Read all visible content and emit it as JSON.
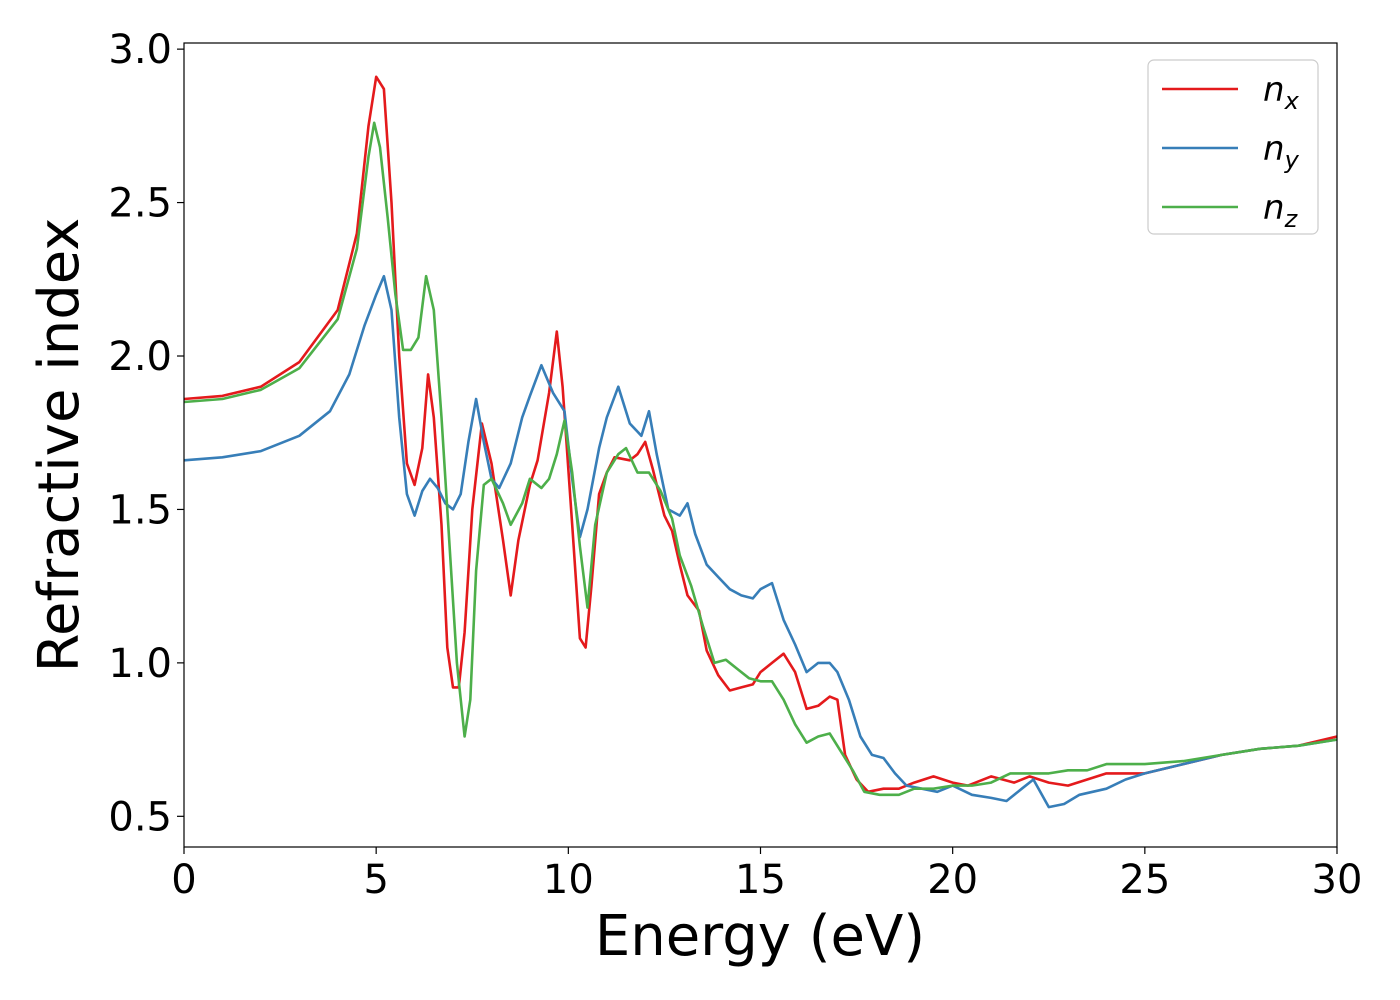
{
  "chart_data": {
    "type": "line",
    "title": "",
    "xlabel": "Energy (eV)",
    "ylabel": "Refractive index",
    "xlim": [
      0,
      30
    ],
    "ylim": [
      0.4,
      3.02
    ],
    "xticks": [
      0,
      5,
      10,
      15,
      20,
      25,
      30
    ],
    "xtick_labels": [
      "0",
      "5",
      "10",
      "15",
      "20",
      "25",
      "30"
    ],
    "yticks": [
      0.5,
      1.0,
      1.5,
      2.0,
      2.5,
      3.0
    ],
    "ytick_labels": [
      "0.5",
      "1.0",
      "1.5",
      "2.0",
      "2.5",
      "3.0"
    ],
    "grid": false,
    "legend": {
      "position": "top-right",
      "entries": [
        {
          "main": "n",
          "sub": "x"
        },
        {
          "main": "n",
          "sub": "y"
        },
        {
          "main": "n",
          "sub": "z"
        }
      ]
    },
    "series": [
      {
        "key": "nx",
        "color": "#e41a1c",
        "points": [
          [
            0,
            1.86
          ],
          [
            1,
            1.87
          ],
          [
            2,
            1.9
          ],
          [
            3,
            1.98
          ],
          [
            4,
            2.15
          ],
          [
            4.5,
            2.4
          ],
          [
            4.8,
            2.75
          ],
          [
            5.0,
            2.91
          ],
          [
            5.2,
            2.87
          ],
          [
            5.4,
            2.5
          ],
          [
            5.6,
            2.0
          ],
          [
            5.8,
            1.65
          ],
          [
            6.0,
            1.58
          ],
          [
            6.2,
            1.7
          ],
          [
            6.35,
            1.94
          ],
          [
            6.5,
            1.8
          ],
          [
            6.7,
            1.45
          ],
          [
            6.85,
            1.05
          ],
          [
            7.0,
            0.92
          ],
          [
            7.15,
            0.92
          ],
          [
            7.3,
            1.1
          ],
          [
            7.5,
            1.5
          ],
          [
            7.75,
            1.78
          ],
          [
            8.0,
            1.65
          ],
          [
            8.3,
            1.4
          ],
          [
            8.5,
            1.22
          ],
          [
            8.7,
            1.4
          ],
          [
            9.0,
            1.58
          ],
          [
            9.2,
            1.66
          ],
          [
            9.5,
            1.88
          ],
          [
            9.7,
            2.08
          ],
          [
            9.85,
            1.9
          ],
          [
            10.1,
            1.45
          ],
          [
            10.3,
            1.08
          ],
          [
            10.45,
            1.05
          ],
          [
            10.6,
            1.25
          ],
          [
            10.8,
            1.55
          ],
          [
            11.0,
            1.62
          ],
          [
            11.2,
            1.67
          ],
          [
            11.6,
            1.66
          ],
          [
            11.8,
            1.68
          ],
          [
            12.0,
            1.72
          ],
          [
            12.2,
            1.63
          ],
          [
            12.5,
            1.48
          ],
          [
            12.7,
            1.43
          ],
          [
            12.9,
            1.32
          ],
          [
            13.1,
            1.22
          ],
          [
            13.4,
            1.17
          ],
          [
            13.6,
            1.04
          ],
          [
            13.9,
            0.96
          ],
          [
            14.2,
            0.91
          ],
          [
            14.5,
            0.92
          ],
          [
            14.8,
            0.93
          ],
          [
            15.0,
            0.97
          ],
          [
            15.3,
            1.0
          ],
          [
            15.6,
            1.03
          ],
          [
            15.9,
            0.97
          ],
          [
            16.2,
            0.85
          ],
          [
            16.5,
            0.86
          ],
          [
            16.8,
            0.89
          ],
          [
            17.0,
            0.88
          ],
          [
            17.2,
            0.7
          ],
          [
            17.5,
            0.62
          ],
          [
            17.8,
            0.58
          ],
          [
            18.2,
            0.59
          ],
          [
            18.6,
            0.59
          ],
          [
            19.0,
            0.61
          ],
          [
            19.5,
            0.63
          ],
          [
            20.0,
            0.61
          ],
          [
            20.4,
            0.6
          ],
          [
            21.0,
            0.63
          ],
          [
            21.6,
            0.61
          ],
          [
            22.0,
            0.63
          ],
          [
            22.5,
            0.61
          ],
          [
            23.0,
            0.6
          ],
          [
            23.5,
            0.62
          ],
          [
            24.0,
            0.64
          ],
          [
            25.0,
            0.64
          ],
          [
            26.0,
            0.67
          ],
          [
            27.0,
            0.7
          ],
          [
            28.0,
            0.72
          ],
          [
            29.0,
            0.73
          ],
          [
            30.0,
            0.76
          ]
        ]
      },
      {
        "key": "ny",
        "color": "#377eb8",
        "points": [
          [
            0,
            1.66
          ],
          [
            1,
            1.67
          ],
          [
            2,
            1.69
          ],
          [
            3,
            1.74
          ],
          [
            3.8,
            1.82
          ],
          [
            4.3,
            1.94
          ],
          [
            4.7,
            2.1
          ],
          [
            5.0,
            2.2
          ],
          [
            5.2,
            2.26
          ],
          [
            5.4,
            2.15
          ],
          [
            5.6,
            1.8
          ],
          [
            5.8,
            1.55
          ],
          [
            6.0,
            1.48
          ],
          [
            6.2,
            1.56
          ],
          [
            6.4,
            1.6
          ],
          [
            6.6,
            1.57
          ],
          [
            6.8,
            1.52
          ],
          [
            7.0,
            1.5
          ],
          [
            7.2,
            1.55
          ],
          [
            7.4,
            1.72
          ],
          [
            7.6,
            1.86
          ],
          [
            7.8,
            1.72
          ],
          [
            8.0,
            1.6
          ],
          [
            8.2,
            1.57
          ],
          [
            8.5,
            1.65
          ],
          [
            8.8,
            1.8
          ],
          [
            9.0,
            1.87
          ],
          [
            9.3,
            1.97
          ],
          [
            9.6,
            1.88
          ],
          [
            9.9,
            1.82
          ],
          [
            10.1,
            1.6
          ],
          [
            10.3,
            1.41
          ],
          [
            10.5,
            1.5
          ],
          [
            10.8,
            1.7
          ],
          [
            11.0,
            1.8
          ],
          [
            11.3,
            1.9
          ],
          [
            11.6,
            1.78
          ],
          [
            11.9,
            1.74
          ],
          [
            12.1,
            1.82
          ],
          [
            12.3,
            1.68
          ],
          [
            12.6,
            1.5
          ],
          [
            12.9,
            1.48
          ],
          [
            13.1,
            1.52
          ],
          [
            13.3,
            1.42
          ],
          [
            13.6,
            1.32
          ],
          [
            13.9,
            1.28
          ],
          [
            14.2,
            1.24
          ],
          [
            14.5,
            1.22
          ],
          [
            14.8,
            1.21
          ],
          [
            15.0,
            1.24
          ],
          [
            15.3,
            1.26
          ],
          [
            15.6,
            1.14
          ],
          [
            15.9,
            1.06
          ],
          [
            16.2,
            0.97
          ],
          [
            16.5,
            1.0
          ],
          [
            16.8,
            1.0
          ],
          [
            17.0,
            0.97
          ],
          [
            17.3,
            0.88
          ],
          [
            17.6,
            0.76
          ],
          [
            17.9,
            0.7
          ],
          [
            18.2,
            0.69
          ],
          [
            18.5,
            0.64
          ],
          [
            18.8,
            0.6
          ],
          [
            19.2,
            0.59
          ],
          [
            19.6,
            0.58
          ],
          [
            20.0,
            0.6
          ],
          [
            20.5,
            0.57
          ],
          [
            21.0,
            0.56
          ],
          [
            21.4,
            0.55
          ],
          [
            21.8,
            0.59
          ],
          [
            22.1,
            0.62
          ],
          [
            22.5,
            0.53
          ],
          [
            22.9,
            0.54
          ],
          [
            23.3,
            0.57
          ],
          [
            24.0,
            0.59
          ],
          [
            24.5,
            0.62
          ],
          [
            25.0,
            0.64
          ],
          [
            26.0,
            0.67
          ],
          [
            27.0,
            0.7
          ],
          [
            28.0,
            0.72
          ],
          [
            29.0,
            0.73
          ],
          [
            30.0,
            0.75
          ]
        ]
      },
      {
        "key": "nz",
        "color": "#4daf4a",
        "points": [
          [
            0,
            1.85
          ],
          [
            1,
            1.86
          ],
          [
            2,
            1.89
          ],
          [
            3,
            1.96
          ],
          [
            4,
            2.12
          ],
          [
            4.5,
            2.35
          ],
          [
            4.8,
            2.65
          ],
          [
            4.95,
            2.76
          ],
          [
            5.1,
            2.68
          ],
          [
            5.3,
            2.45
          ],
          [
            5.5,
            2.2
          ],
          [
            5.7,
            2.02
          ],
          [
            5.9,
            2.02
          ],
          [
            6.1,
            2.06
          ],
          [
            6.3,
            2.26
          ],
          [
            6.5,
            2.15
          ],
          [
            6.7,
            1.8
          ],
          [
            6.9,
            1.4
          ],
          [
            7.1,
            1.0
          ],
          [
            7.3,
            0.76
          ],
          [
            7.45,
            0.88
          ],
          [
            7.6,
            1.3
          ],
          [
            7.8,
            1.58
          ],
          [
            8.0,
            1.6
          ],
          [
            8.3,
            1.52
          ],
          [
            8.5,
            1.45
          ],
          [
            8.8,
            1.52
          ],
          [
            9.0,
            1.6
          ],
          [
            9.3,
            1.57
          ],
          [
            9.5,
            1.6
          ],
          [
            9.7,
            1.68
          ],
          [
            9.9,
            1.79
          ],
          [
            10.1,
            1.62
          ],
          [
            10.3,
            1.38
          ],
          [
            10.5,
            1.18
          ],
          [
            10.7,
            1.45
          ],
          [
            11.0,
            1.62
          ],
          [
            11.3,
            1.68
          ],
          [
            11.5,
            1.7
          ],
          [
            11.8,
            1.62
          ],
          [
            12.1,
            1.62
          ],
          [
            12.4,
            1.56
          ],
          [
            12.7,
            1.47
          ],
          [
            12.9,
            1.35
          ],
          [
            13.2,
            1.25
          ],
          [
            13.5,
            1.12
          ],
          [
            13.8,
            1.0
          ],
          [
            14.1,
            1.01
          ],
          [
            14.4,
            0.98
          ],
          [
            14.7,
            0.95
          ],
          [
            15.0,
            0.94
          ],
          [
            15.3,
            0.94
          ],
          [
            15.6,
            0.88
          ],
          [
            15.9,
            0.8
          ],
          [
            16.2,
            0.74
          ],
          [
            16.5,
            0.76
          ],
          [
            16.8,
            0.77
          ],
          [
            17.1,
            0.71
          ],
          [
            17.4,
            0.65
          ],
          [
            17.7,
            0.58
          ],
          [
            18.1,
            0.57
          ],
          [
            18.6,
            0.57
          ],
          [
            19.0,
            0.59
          ],
          [
            19.5,
            0.59
          ],
          [
            20.0,
            0.6
          ],
          [
            20.5,
            0.6
          ],
          [
            21.0,
            0.61
          ],
          [
            21.5,
            0.64
          ],
          [
            22.0,
            0.64
          ],
          [
            22.5,
            0.64
          ],
          [
            23.0,
            0.65
          ],
          [
            23.5,
            0.65
          ],
          [
            24.0,
            0.67
          ],
          [
            25.0,
            0.67
          ],
          [
            26.0,
            0.68
          ],
          [
            27.0,
            0.7
          ],
          [
            28.0,
            0.72
          ],
          [
            29.0,
            0.73
          ],
          [
            30.0,
            0.75
          ]
        ]
      }
    ]
  }
}
